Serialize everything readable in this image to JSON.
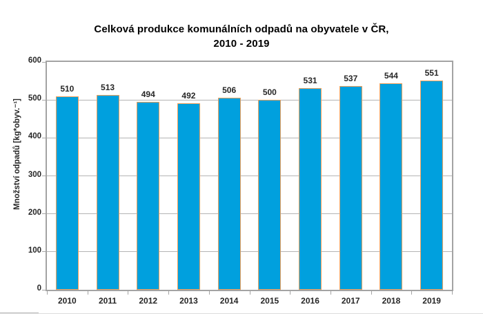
{
  "chart_data": {
    "type": "bar",
    "title": "Celková produkce komunálních odpadů na obyvatele v ČR, 2010 - 2019",
    "title_line1": "Celková produkce komunálních odpadů na obyvatele v ČR,",
    "title_line2": "2010 - 2019",
    "categories": [
      "2010",
      "2011",
      "2012",
      "2013",
      "2014",
      "2015",
      "2016",
      "2017",
      "2018",
      "2019"
    ],
    "values": [
      510,
      513,
      494,
      492,
      506,
      500,
      531,
      537,
      544,
      551
    ],
    "xlabel": "",
    "ylabel": "Množství odpadů [kg*obyv.⁻¹]",
    "ylim": [
      0,
      600
    ],
    "ytick_step": 100,
    "ytick_labels": [
      "0",
      "100",
      "200",
      "300",
      "400",
      "500",
      "600"
    ],
    "grid": true,
    "legend_position": "none",
    "data_labels": true,
    "colors": {
      "bar_fill": "#00a0de",
      "bar_border": "#f2a05a",
      "axis": "#a3a3a3",
      "gridline": "#b3b3b3",
      "text": "#262626",
      "title_text": "#000000"
    }
  }
}
